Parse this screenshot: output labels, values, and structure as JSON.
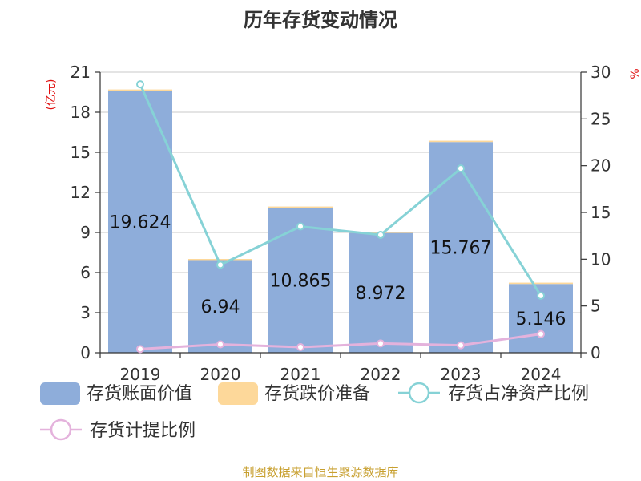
{
  "title": "历年存货变动情况",
  "source": "制图数据来自恒生聚源数据库",
  "left_unit": "(亿元)",
  "right_unit": "%",
  "chart_data": {
    "type": "bar",
    "categories": [
      "2019",
      "2020",
      "2021",
      "2022",
      "2023",
      "2024"
    ],
    "ylim_left": [
      0,
      21
    ],
    "yticks_left": [
      0,
      3,
      6,
      9,
      12,
      15,
      18,
      21
    ],
    "ylim_right": [
      0,
      30
    ],
    "yticks_right": [
      0,
      5,
      10,
      15,
      20,
      25,
      30
    ],
    "grid": true,
    "legend_position": "bottom",
    "series": [
      {
        "name": "存货账面价值",
        "type": "bar",
        "axis": "left",
        "color": "#8eadda",
        "values": [
          19.624,
          6.94,
          10.865,
          8.972,
          15.767,
          5.146
        ],
        "labels": [
          "19.624",
          "6.94",
          "10.865",
          "8.972",
          "15.767",
          "5.146"
        ]
      },
      {
        "name": "存货跌价准备",
        "type": "bar",
        "axis": "left",
        "color": "#fdd89a",
        "values": [
          0.08,
          0.08,
          0.08,
          0.08,
          0.1,
          0.1
        ]
      },
      {
        "name": "存货占净资产比例",
        "type": "line",
        "axis": "right",
        "color": "#86d2d6",
        "values": [
          28.7,
          9.4,
          13.5,
          12.6,
          19.7,
          6.1
        ]
      },
      {
        "name": "存货计提比例",
        "type": "line",
        "axis": "right",
        "color": "#e4b2dc",
        "values": [
          0.4,
          0.9,
          0.6,
          1.0,
          0.8,
          2.0
        ]
      }
    ]
  }
}
